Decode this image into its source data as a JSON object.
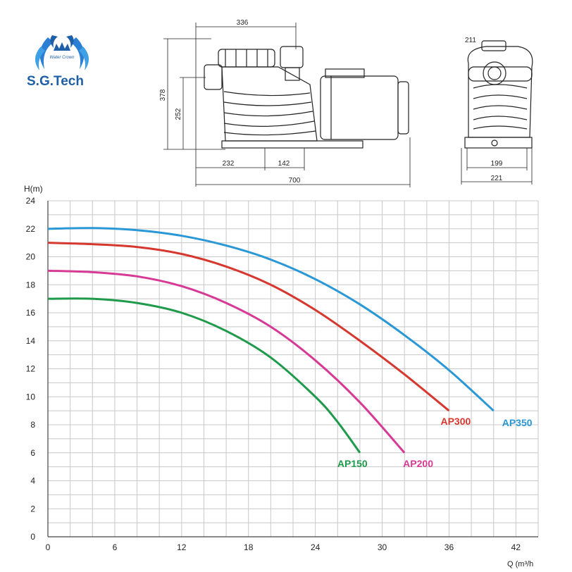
{
  "brand": {
    "name": "S.G.Tech",
    "logo_inner_text": "Water Crown"
  },
  "drawing": {
    "side_view": {
      "dim_top": "336",
      "dim_height": "378",
      "dim_inlet": "252",
      "dim_base_left": "232",
      "dim_base_right": "142",
      "dim_length": "700"
    },
    "front_view": {
      "dim_top": "211",
      "dim_base_inner": "199",
      "dim_base_outer": "221"
    }
  },
  "chart_data": {
    "type": "line",
    "ylabel": "H(m)",
    "xlabel": "Q (m³/h",
    "xlim": [
      0,
      44
    ],
    "ylim": [
      0,
      24
    ],
    "xticks": [
      0,
      6,
      12,
      18,
      24,
      30,
      36,
      42
    ],
    "yticks": [
      0,
      2,
      4,
      6,
      8,
      10,
      12,
      14,
      16,
      18,
      20,
      22,
      24
    ],
    "grid": true,
    "series": [
      {
        "name": "AP150",
        "color": "#1e9a4a",
        "x": [
          0,
          4,
          8,
          12,
          16,
          20,
          24,
          26,
          28
        ],
        "y": [
          17.0,
          17.0,
          16.7,
          16.0,
          14.7,
          12.8,
          10.0,
          8.2,
          6.0
        ]
      },
      {
        "name": "AP200",
        "color": "#d63a95",
        "x": [
          0,
          4,
          8,
          12,
          16,
          20,
          24,
          28,
          32
        ],
        "y": [
          19.0,
          18.9,
          18.6,
          17.9,
          16.7,
          15.0,
          12.6,
          9.6,
          6.0
        ]
      },
      {
        "name": "AP300",
        "color": "#d6372e",
        "x": [
          0,
          4,
          8,
          12,
          16,
          20,
          24,
          28,
          32,
          36
        ],
        "y": [
          21.0,
          20.9,
          20.7,
          20.2,
          19.3,
          18.0,
          16.2,
          14.0,
          11.6,
          9.0
        ]
      },
      {
        "name": "AP350",
        "color": "#2a98d6",
        "x": [
          0,
          4,
          8,
          12,
          16,
          20,
          24,
          28,
          32,
          36,
          40
        ],
        "y": [
          22.0,
          22.05,
          21.9,
          21.5,
          20.8,
          19.8,
          18.4,
          16.6,
          14.4,
          11.9,
          9.0
        ]
      }
    ]
  }
}
